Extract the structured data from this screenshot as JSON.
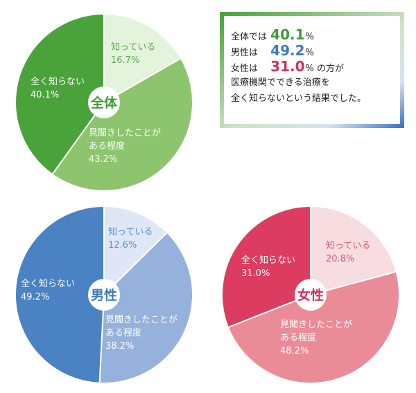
{
  "colors": {
    "zentai": [
      "#e4f4dc",
      "#8cc56e",
      "#4aa33a"
    ],
    "dansei": [
      "#dfe6f5",
      "#97b1dd",
      "#4a82c3"
    ],
    "josei": [
      "#f8dde0",
      "#ea8c97",
      "#db3c60"
    ],
    "zentai_accent": "#3f9d33",
    "dansei_accent": "#3d7ac0",
    "josei_accent": "#d62f5c"
  },
  "summary": {
    "all_prefix": "全体では",
    "all_value": "40.1",
    "men_prefix": "男性は",
    "men_value": "49.2",
    "women_prefix": "女性は",
    "women_value": "31.0",
    "unit": "%",
    "women_suffix": "の方が",
    "line4": "医療機関でできる治療を",
    "line5": "全く知らないという結果でした。"
  },
  "chart_data": [
    {
      "type": "pie",
      "title": "全体",
      "slices": [
        {
          "label": "知っている",
          "value": 16.7,
          "value_text": "16.7%"
        },
        {
          "label": "見聞きしたことがある程度",
          "label_lines": [
            "見聞きしたことが",
            "ある程度"
          ],
          "value": 43.2,
          "value_text": "43.2%"
        },
        {
          "label": "全く知らない",
          "value": 40.1,
          "value_text": "40.1%"
        }
      ]
    },
    {
      "type": "pie",
      "title": "男性",
      "slices": [
        {
          "label": "知っている",
          "value": 12.6,
          "value_text": "12.6%"
        },
        {
          "label": "見聞きしたことがある程度",
          "label_lines": [
            "見聞きしたことが",
            "ある程度"
          ],
          "value": 38.2,
          "value_text": "38.2%"
        },
        {
          "label": "全く知らない",
          "value": 49.2,
          "value_text": "49.2%"
        }
      ]
    },
    {
      "type": "pie",
      "title": "女性",
      "slices": [
        {
          "label": "知っている",
          "value": 20.8,
          "value_text": "20.8%"
        },
        {
          "label": "見聞きしたことがある程度",
          "label_lines": [
            "見聞きしたことが",
            "ある程度"
          ],
          "value": 48.2,
          "value_text": "48.2%"
        },
        {
          "label": "全く知らない",
          "value": 31.0,
          "value_text": "31.0%"
        }
      ]
    }
  ]
}
